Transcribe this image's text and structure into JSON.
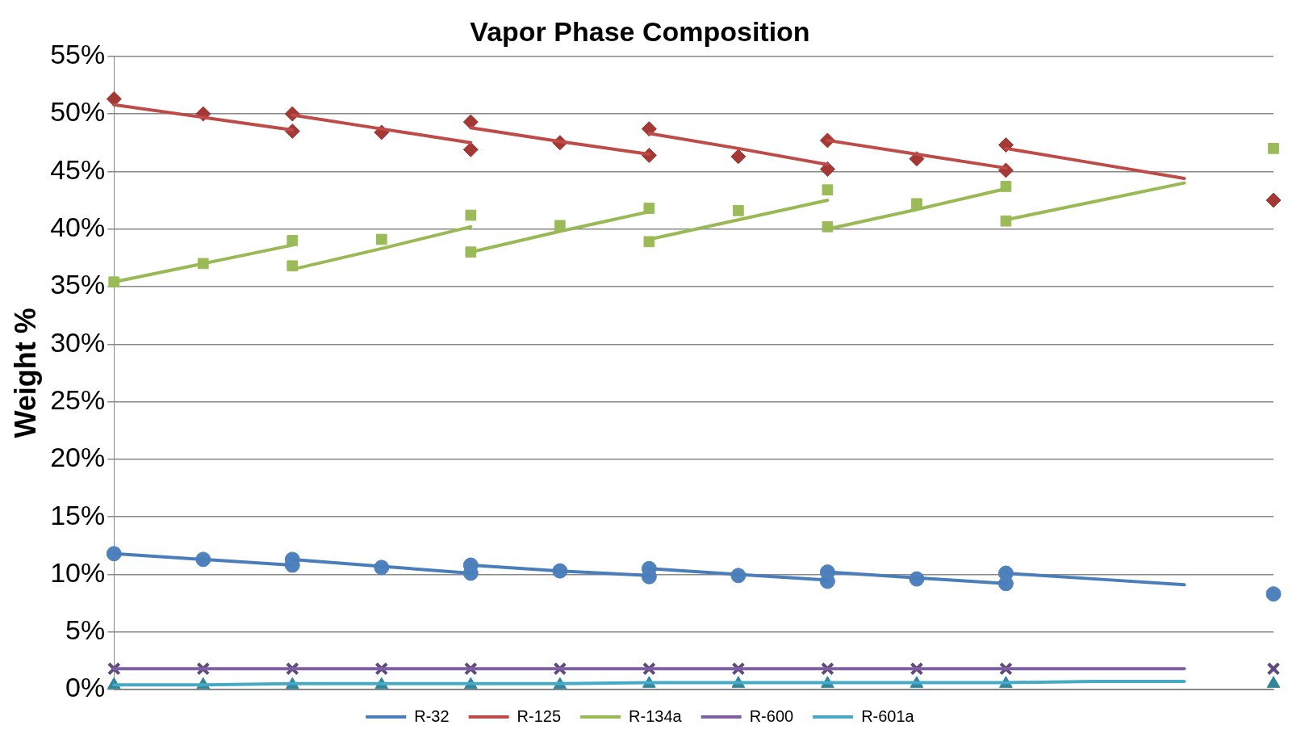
{
  "chart_data": {
    "type": "line",
    "title": "Vapor Phase Composition",
    "ylabel": "Weight %",
    "categories": [
      null,
      null,
      null,
      null,
      null,
      null,
      null,
      null,
      null,
      null,
      null,
      null,
      null,
      null
    ],
    "ylim": [
      0,
      55
    ],
    "yticks": [
      {
        "value": 0,
        "label": "0%"
      },
      {
        "value": 5,
        "label": "5%"
      },
      {
        "value": 10,
        "label": "10%"
      },
      {
        "value": 15,
        "label": "15%"
      },
      {
        "value": 20,
        "label": "20%"
      },
      {
        "value": 25,
        "label": "25%"
      },
      {
        "value": 30,
        "label": "30%"
      },
      {
        "value": 35,
        "label": "35%"
      },
      {
        "value": 40,
        "label": "40%"
      },
      {
        "value": 45,
        "label": "45%"
      },
      {
        "value": 50,
        "label": "50%"
      },
      {
        "value": 55,
        "label": "55%"
      }
    ],
    "grid": "y",
    "legend": "bottom",
    "tick_labels": "y",
    "series": [
      {
        "name": "R-32",
        "type": "line",
        "marker": "none",
        "color": "#4a7ebb",
        "values": [
          11.8,
          11.3,
          10.8,
          null,
          null,
          null,
          null,
          null,
          null,
          null,
          null,
          null,
          null,
          null
        ]
      },
      {
        "type": "line",
        "marker": "none",
        "color": "#4a7ebb",
        "values": [
          null,
          null,
          11.3,
          10.7,
          10.1,
          null,
          null,
          null,
          null,
          null,
          null,
          null,
          null,
          null
        ]
      },
      {
        "type": "line",
        "marker": "none",
        "color": "#4a7ebb",
        "values": [
          null,
          null,
          null,
          null,
          10.8,
          10.3,
          9.9,
          null,
          null,
          null,
          null,
          null,
          null,
          null
        ]
      },
      {
        "type": "line",
        "marker": "none",
        "color": "#4a7ebb",
        "values": [
          null,
          null,
          null,
          null,
          null,
          null,
          10.5,
          10.0,
          9.5,
          null,
          null,
          null,
          null,
          null
        ]
      },
      {
        "type": "line",
        "marker": "none",
        "color": "#4a7ebb",
        "values": [
          null,
          null,
          null,
          null,
          null,
          null,
          null,
          null,
          10.2,
          9.7,
          9.2,
          null,
          null,
          null
        ]
      },
      {
        "type": "line",
        "marker": "none",
        "color": "#4a7ebb",
        "values": [
          null,
          null,
          null,
          null,
          null,
          null,
          null,
          null,
          null,
          null,
          10.1,
          9.6,
          9.1,
          null
        ]
      },
      {
        "name": "R-125",
        "type": "line",
        "marker": "none",
        "color": "#be4b48",
        "values": [
          50.8,
          49.7,
          48.6,
          null,
          null,
          null,
          null,
          null,
          null,
          null,
          null,
          null,
          null,
          null
        ]
      },
      {
        "type": "line",
        "marker": "none",
        "color": "#be4b48",
        "values": [
          null,
          null,
          49.9,
          48.7,
          47.5,
          null,
          null,
          null,
          null,
          null,
          null,
          null,
          null,
          null
        ]
      },
      {
        "type": "line",
        "marker": "none",
        "color": "#be4b48",
        "values": [
          null,
          null,
          null,
          null,
          48.8,
          47.6,
          46.5,
          null,
          null,
          null,
          null,
          null,
          null,
          null
        ]
      },
      {
        "type": "line",
        "marker": "none",
        "color": "#be4b48",
        "values": [
          null,
          null,
          null,
          null,
          null,
          null,
          48.3,
          47.0,
          45.6,
          null,
          null,
          null,
          null,
          null
        ]
      },
      {
        "type": "line",
        "marker": "none",
        "color": "#be4b48",
        "values": [
          null,
          null,
          null,
          null,
          null,
          null,
          null,
          null,
          47.7,
          46.5,
          45.3,
          null,
          null,
          null
        ]
      },
      {
        "type": "line",
        "marker": "none",
        "color": "#be4b48",
        "values": [
          null,
          null,
          null,
          null,
          null,
          null,
          null,
          null,
          null,
          null,
          47.0,
          45.7,
          44.4,
          null
        ]
      },
      {
        "name": "R-134a",
        "type": "line",
        "marker": "none",
        "color": "#98b954",
        "values": [
          35.4,
          37.0,
          38.6,
          null,
          null,
          null,
          null,
          null,
          null,
          null,
          null,
          null,
          null,
          null
        ]
      },
      {
        "type": "line",
        "marker": "none",
        "color": "#98b954",
        "values": [
          null,
          null,
          36.5,
          38.3,
          40.2,
          null,
          null,
          null,
          null,
          null,
          null,
          null,
          null,
          null
        ]
      },
      {
        "type": "line",
        "marker": "none",
        "color": "#98b954",
        "values": [
          null,
          null,
          null,
          null,
          38.0,
          39.8,
          41.5,
          null,
          null,
          null,
          null,
          null,
          null,
          null
        ]
      },
      {
        "type": "line",
        "marker": "none",
        "color": "#98b954",
        "values": [
          null,
          null,
          null,
          null,
          null,
          null,
          39.1,
          40.8,
          42.5,
          null,
          null,
          null,
          null,
          null
        ]
      },
      {
        "type": "line",
        "marker": "none",
        "color": "#98b954",
        "values": [
          null,
          null,
          null,
          null,
          null,
          null,
          null,
          null,
          40.0,
          41.7,
          43.5,
          null,
          null,
          null
        ]
      },
      {
        "type": "line",
        "marker": "none",
        "color": "#98b954",
        "values": [
          null,
          null,
          null,
          null,
          null,
          null,
          null,
          null,
          null,
          null,
          40.8,
          42.4,
          44.0,
          null
        ]
      },
      {
        "name": "R-600",
        "type": "line",
        "marker": "none",
        "color": "#7d60a0",
        "values": [
          1.8,
          1.8,
          1.8,
          1.8,
          1.8,
          1.8,
          1.8,
          1.8,
          1.8,
          1.8,
          1.8,
          1.8,
          1.8,
          null
        ]
      },
      {
        "name": "R-601a",
        "type": "line",
        "marker": "none",
        "color": "#46aac5",
        "values": [
          0.4,
          0.4,
          0.5,
          0.5,
          0.5,
          0.5,
          0.6,
          0.6,
          0.6,
          0.6,
          0.6,
          0.7,
          0.7,
          null
        ]
      },
      {
        "type": "scatter",
        "marker": "circle",
        "color": "#4f81bd",
        "values": [
          11.8,
          11.3,
          10.8,
          10.6,
          10.1,
          10.3,
          9.8,
          9.9,
          9.4,
          9.6,
          9.2,
          null,
          null,
          8.3
        ]
      },
      {
        "type": "scatter",
        "marker": "circle",
        "color": "#4f81bd",
        "values": [
          null,
          null,
          11.3,
          null,
          10.8,
          null,
          10.5,
          null,
          10.2,
          null,
          10.1,
          null,
          null,
          null
        ]
      },
      {
        "type": "scatter",
        "marker": "diamond",
        "color": "#a33835",
        "values": [
          51.3,
          50.0,
          48.5,
          48.4,
          46.9,
          47.5,
          46.4,
          46.3,
          45.2,
          46.1,
          45.1,
          null,
          null,
          42.5
        ]
      },
      {
        "type": "scatter",
        "marker": "diamond",
        "color": "#a33835",
        "values": [
          null,
          null,
          50.0,
          null,
          49.3,
          null,
          48.7,
          null,
          47.7,
          null,
          47.3,
          null,
          null,
          null
        ]
      },
      {
        "type": "scatter",
        "marker": "square",
        "color": "#9bbb59",
        "values": [
          35.4,
          37.0,
          39.0,
          39.1,
          41.2,
          40.3,
          41.8,
          41.6,
          43.4,
          42.2,
          43.7,
          null,
          null,
          47.0
        ]
      },
      {
        "type": "scatter",
        "marker": "square",
        "color": "#9bbb59",
        "values": [
          null,
          null,
          36.8,
          null,
          38.0,
          null,
          38.9,
          null,
          40.2,
          null,
          40.7,
          null,
          null,
          null
        ]
      },
      {
        "type": "scatter",
        "marker": "cross",
        "color": "#604a7b",
        "values": [
          1.8,
          1.8,
          1.8,
          1.8,
          1.8,
          1.8,
          1.8,
          1.8,
          1.8,
          1.8,
          1.8,
          null,
          null,
          1.8
        ]
      },
      {
        "type": "scatter",
        "marker": "triangle",
        "color": "#31859c",
        "values": [
          0.4,
          0.4,
          0.4,
          0.4,
          0.4,
          0.4,
          0.5,
          0.5,
          0.5,
          0.5,
          0.5,
          null,
          null,
          0.5
        ]
      }
    ]
  }
}
